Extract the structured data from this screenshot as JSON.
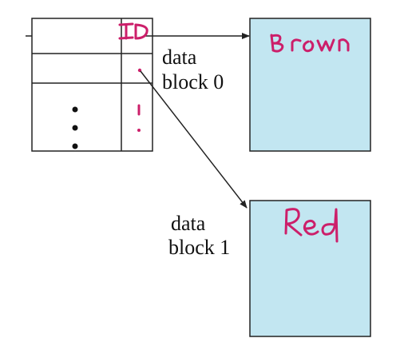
{
  "diagram": {
    "labels": {
      "data_block_0_line1": "data",
      "data_block_0_line2": "block 0",
      "data_block_1_line1": "data",
      "data_block_1_line2": "block 1"
    },
    "annotations": {
      "id_text": "ID",
      "block0_text": "Brown",
      "block1_text": "Red"
    },
    "colors": {
      "block_fill": "#c2e6f1",
      "stroke": "#222222",
      "ink": "#cc1f6a"
    }
  }
}
